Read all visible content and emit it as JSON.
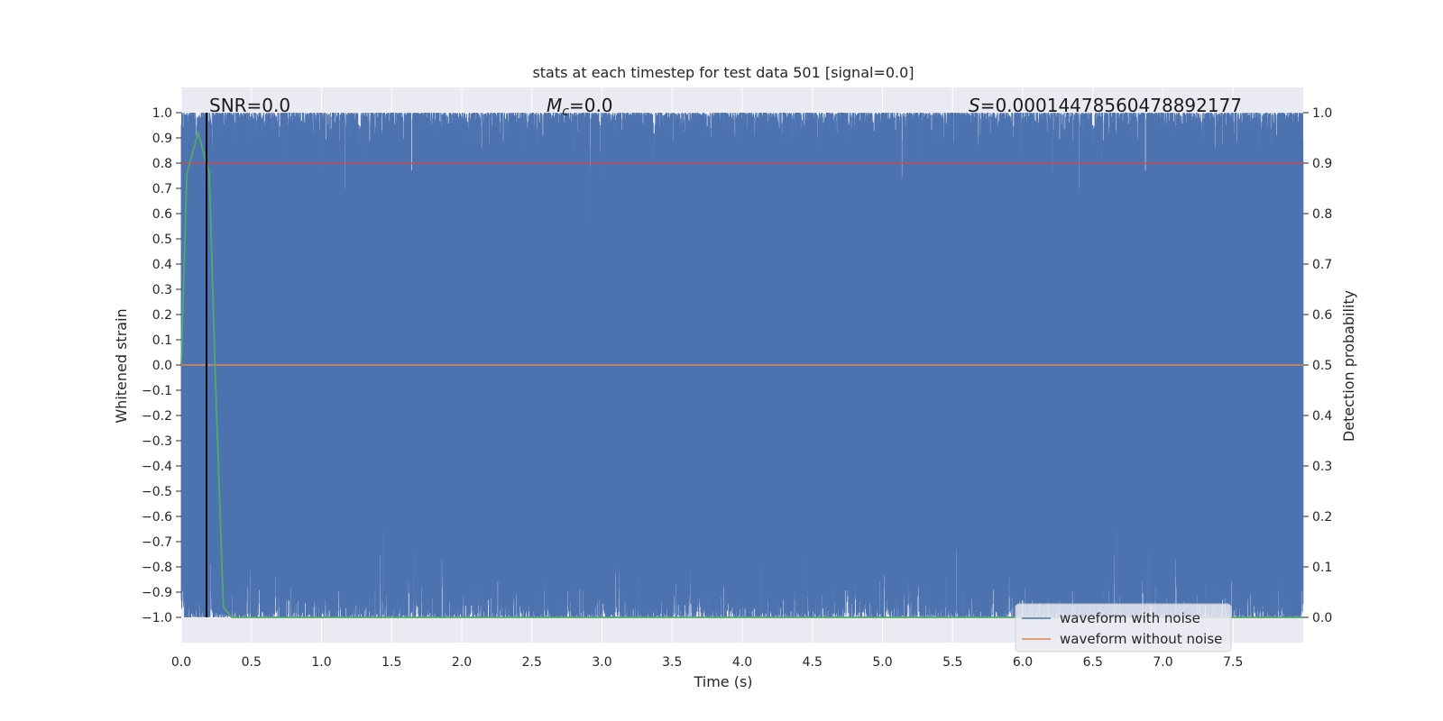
{
  "chart_data": {
    "type": "line",
    "title": "stats at each timestep for test data 501 [signal=0.0]",
    "xlabel": "Time (s)",
    "ylabel": "Whitened strain",
    "ylabel_right": "Detection probability",
    "xlim": [
      0.0,
      8.0
    ],
    "ylim": [
      -1.1,
      1.1
    ],
    "ylim_right": [
      -0.05,
      1.05
    ],
    "x_ticks": [
      "0.0",
      "0.5",
      "1.0",
      "1.5",
      "2.0",
      "2.5",
      "3.0",
      "3.5",
      "4.0",
      "4.5",
      "5.0",
      "5.5",
      "6.0",
      "6.5",
      "7.0",
      "7.5"
    ],
    "y_ticks": [
      "1.0",
      "0.9",
      "0.8",
      "0.7",
      "0.6",
      "0.5",
      "0.4",
      "0.3",
      "0.2",
      "0.1",
      "0.0",
      "−0.1",
      "−0.2",
      "−0.3",
      "−0.4",
      "−0.5",
      "−0.6",
      "−0.7",
      "−0.8",
      "−0.9",
      "−1.0"
    ],
    "y_ticks_right": [
      "1.0",
      "0.9",
      "0.8",
      "0.7",
      "0.6",
      "0.5",
      "0.4",
      "0.3",
      "0.2",
      "0.1",
      "0.0"
    ],
    "grid": true,
    "legend_position": "bottom-right",
    "annotations": {
      "snr": "SNR=0.0",
      "mc_symbol": "M",
      "mc_sub": "c",
      "mc_value": "=0.0",
      "s_symbol": "S",
      "s_value": "=0.00014478560478892177"
    },
    "series": [
      {
        "name": "waveform with noise",
        "color": "#4c72b0",
        "description_range": [
          -1.0,
          1.0
        ],
        "samples": 8000
      },
      {
        "name": "waveform without noise",
        "color": "#dd8452",
        "x": [
          0.0,
          8.0
        ],
        "y": [
          0.0,
          0.0
        ]
      }
    ],
    "detection_probability": {
      "color": "#55a868",
      "axis": "right",
      "x": [
        0.0,
        0.04,
        0.12,
        0.2,
        0.24,
        0.3,
        0.36,
        8.0
      ],
      "y": [
        0.5,
        0.88,
        0.96,
        0.88,
        0.5,
        0.02,
        0.0,
        0.0
      ]
    },
    "threshold_line": {
      "color": "#c44e52",
      "axis": "right",
      "y": 0.9
    },
    "marker_line": {
      "color": "#000000",
      "x": 0.18
    }
  }
}
